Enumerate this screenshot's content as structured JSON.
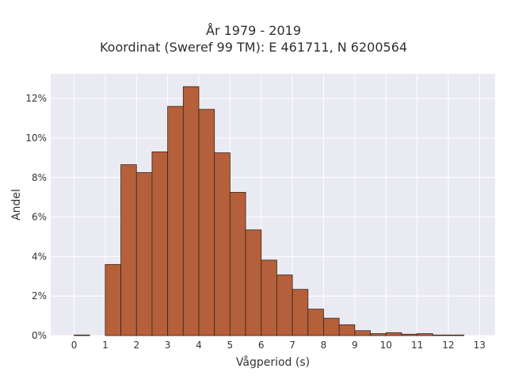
{
  "chart_data": {
    "type": "bar",
    "title": "År 1979 - 2019",
    "subtitle": "Koordinat (Sweref 99 TM): E 461711, N 6200564",
    "xlabel": "Vågperiod (s)",
    "ylabel": "Andel",
    "xlim": [
      -0.75,
      13.5
    ],
    "ylim": [
      0,
      0.1325
    ],
    "grid": true,
    "bar_color": "#b5603a",
    "bar_edge_color": "#3a2418",
    "plot_background": "#eaeaf2",
    "x_ticks": [
      0,
      1,
      2,
      3,
      4,
      5,
      6,
      7,
      8,
      9,
      10,
      11,
      12,
      13
    ],
    "x_tick_labels": [
      "0",
      "1",
      "2",
      "3",
      "4",
      "5",
      "6",
      "7",
      "8",
      "9",
      "10",
      "11",
      "12",
      "13"
    ],
    "y_ticks": [
      0,
      0.02,
      0.04,
      0.06,
      0.08,
      0.1,
      0.12
    ],
    "y_tick_labels": [
      "0%",
      "2%",
      "4%",
      "6%",
      "8%",
      "10%",
      "12%"
    ],
    "bins": [
      {
        "x0": 0.0,
        "x1": 0.5,
        "value": 0.0003
      },
      {
        "x0": 0.5,
        "x1": 1.0,
        "value": 0.0
      },
      {
        "x0": 1.0,
        "x1": 1.5,
        "value": 0.036
      },
      {
        "x0": 1.5,
        "x1": 2.0,
        "value": 0.0865
      },
      {
        "x0": 2.0,
        "x1": 2.5,
        "value": 0.0825
      },
      {
        "x0": 2.5,
        "x1": 3.0,
        "value": 0.093
      },
      {
        "x0": 3.0,
        "x1": 3.5,
        "value": 0.116
      },
      {
        "x0": 3.5,
        "x1": 4.0,
        "value": 0.126
      },
      {
        "x0": 4.0,
        "x1": 4.5,
        "value": 0.1145
      },
      {
        "x0": 4.5,
        "x1": 5.0,
        "value": 0.0925
      },
      {
        "x0": 5.0,
        "x1": 5.5,
        "value": 0.0725
      },
      {
        "x0": 5.5,
        "x1": 6.0,
        "value": 0.0535
      },
      {
        "x0": 6.0,
        "x1": 6.5,
        "value": 0.0382
      },
      {
        "x0": 6.5,
        "x1": 7.0,
        "value": 0.0307
      },
      {
        "x0": 7.0,
        "x1": 7.5,
        "value": 0.0234
      },
      {
        "x0": 7.5,
        "x1": 8.0,
        "value": 0.0134
      },
      {
        "x0": 8.0,
        "x1": 8.5,
        "value": 0.0088
      },
      {
        "x0": 8.5,
        "x1": 9.0,
        "value": 0.0055
      },
      {
        "x0": 9.0,
        "x1": 9.5,
        "value": 0.0025
      },
      {
        "x0": 9.5,
        "x1": 10.0,
        "value": 0.001
      },
      {
        "x0": 10.0,
        "x1": 10.5,
        "value": 0.0015
      },
      {
        "x0": 10.5,
        "x1": 11.0,
        "value": 0.0007
      },
      {
        "x0": 11.0,
        "x1": 11.5,
        "value": 0.001
      },
      {
        "x0": 11.5,
        "x1": 12.0,
        "value": 0.0003
      },
      {
        "x0": 12.0,
        "x1": 12.5,
        "value": 0.0003
      }
    ]
  }
}
